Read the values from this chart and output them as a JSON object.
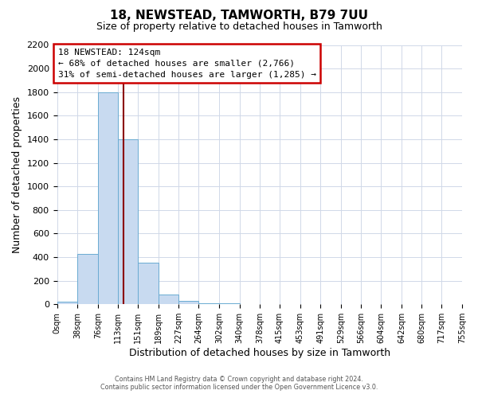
{
  "title": "18, NEWSTEAD, TAMWORTH, B79 7UU",
  "subtitle": "Size of property relative to detached houses in Tamworth",
  "xlabel": "Distribution of detached houses by size in Tamworth",
  "ylabel": "Number of detached properties",
  "bin_edges": [
    0,
    38,
    76,
    113,
    151,
    189,
    227,
    264,
    302,
    340,
    378,
    415,
    453,
    491,
    529,
    566,
    604,
    642,
    680,
    717,
    755
  ],
  "bin_counts": [
    20,
    430,
    1800,
    1400,
    350,
    80,
    30,
    10,
    10,
    0,
    0,
    0,
    0,
    0,
    0,
    0,
    0,
    0,
    0,
    0
  ],
  "bar_color": "#c8daf0",
  "bar_edge_color": "#6aabd2",
  "property_size": 124,
  "vline_color": "#8b0000",
  "annotation_box_edge": "#cc0000",
  "annotation_text_line1": "18 NEWSTEAD: 124sqm",
  "annotation_text_line2": "← 68% of detached houses are smaller (2,766)",
  "annotation_text_line3": "31% of semi-detached houses are larger (1,285) →",
  "ylim": [
    0,
    2200
  ],
  "yticks": [
    0,
    200,
    400,
    600,
    800,
    1000,
    1200,
    1400,
    1600,
    1800,
    2000,
    2200
  ],
  "tick_labels": [
    "0sqm",
    "38sqm",
    "76sqm",
    "113sqm",
    "151sqm",
    "189sqm",
    "227sqm",
    "264sqm",
    "302sqm",
    "340sqm",
    "378sqm",
    "415sqm",
    "453sqm",
    "491sqm",
    "529sqm",
    "566sqm",
    "604sqm",
    "642sqm",
    "680sqm",
    "717sqm",
    "755sqm"
  ],
  "footer_line1": "Contains HM Land Registry data © Crown copyright and database right 2024.",
  "footer_line2": "Contains public sector information licensed under the Open Government Licence v3.0.",
  "background_color": "#ffffff",
  "grid_color": "#d0d8e8"
}
